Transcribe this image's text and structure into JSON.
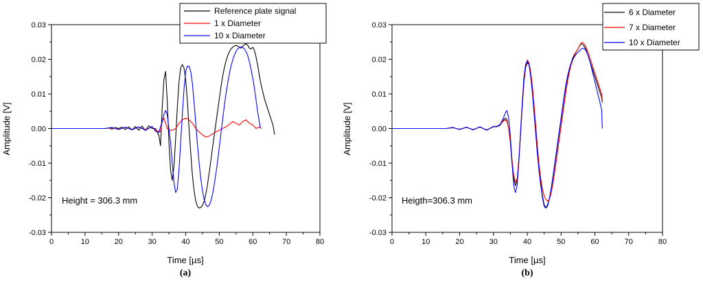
{
  "chart_data": [
    {
      "type": "line",
      "panel_label": "(a)",
      "xlabel": "Time [µs]",
      "ylabel": "Amplitude [V]",
      "xlim": [
        0,
        80
      ],
      "ylim": [
        -0.03,
        0.03
      ],
      "xticks": [
        0,
        10,
        20,
        30,
        40,
        50,
        60,
        70,
        80
      ],
      "xtick_labels": [
        "0",
        "10",
        "20",
        "30",
        "40",
        "50",
        "60",
        "70",
        "80"
      ],
      "yticks": [
        -0.03,
        -0.02,
        -0.01,
        0.0,
        0.01,
        0.02,
        0.03
      ],
      "ytick_labels": [
        "-0.03",
        "-0.02",
        "-0.01",
        "0.00",
        "0.01",
        "0.02",
        "0.03"
      ],
      "annotation": "Height = 306.3 mm",
      "legend_position": "top-right",
      "series": [
        {
          "name": "Reference plate signal",
          "color": "#000000",
          "x": [
            0,
            16,
            17,
            18,
            19,
            20,
            21,
            22,
            23,
            24,
            25,
            26,
            27,
            28,
            29,
            30,
            31,
            32,
            32.5,
            33,
            33.5,
            34,
            34.5,
            35,
            35.5,
            36,
            36.5,
            37,
            37.5,
            38,
            38.5,
            39,
            39.5,
            40,
            40.5,
            41,
            41.5,
            42,
            42.5,
            43,
            43.5,
            44,
            44.5,
            45,
            45.5,
            46,
            46.5,
            47,
            47.5,
            48,
            48.5,
            49,
            49.5,
            50,
            50.5,
            51,
            51.5,
            52,
            52.5,
            53,
            53.5,
            54,
            54.5,
            55,
            55.5,
            56,
            56.5,
            57,
            57.5,
            58,
            58.5,
            59,
            59.5,
            60,
            60.5,
            61,
            61.5,
            62,
            62.5,
            63,
            63.5,
            64,
            64.5,
            65,
            65.5,
            66,
            66.5
          ],
          "y": [
            0.0,
            0.0,
            0.0002,
            -0.0002,
            0.0003,
            0.0,
            0.0004,
            -0.0003,
            0.0005,
            -0.0004,
            0.0006,
            -0.0005,
            0.0007,
            -0.0006,
            0.0008,
            0.0,
            0.0,
            -0.002,
            -0.005,
            0.006,
            0.014,
            0.0165,
            0.008,
            -0.004,
            -0.012,
            -0.015,
            -0.011,
            -0.003,
            0.006,
            0.0135,
            0.0175,
            0.0185,
            0.0175,
            0.014,
            0.008,
            0.0,
            -0.007,
            -0.0135,
            -0.018,
            -0.021,
            -0.0225,
            -0.023,
            -0.0228,
            -0.0222,
            -0.021,
            -0.019,
            -0.0162,
            -0.0128,
            -0.0092,
            -0.0055,
            -0.002,
            0.0015,
            0.005,
            0.0085,
            0.012,
            0.015,
            0.0175,
            0.0195,
            0.021,
            0.0222,
            0.023,
            0.0235,
            0.0238,
            0.024,
            0.0238,
            0.0235,
            0.0232,
            0.0238,
            0.0242,
            0.0245,
            0.024,
            0.0232,
            0.023,
            0.0235,
            0.0225,
            0.0205,
            0.018,
            0.015,
            0.0125,
            0.0105,
            0.0085,
            0.007,
            0.0055,
            0.004,
            0.0025,
            0.001,
            -0.0018
          ]
        },
        {
          "name": "1 x Diameter",
          "color": "#ff0000",
          "x": [
            0,
            16,
            18,
            20,
            22,
            24,
            26,
            28,
            30,
            31,
            32,
            32.5,
            33,
            33.5,
            34,
            34.5,
            35,
            36,
            37,
            38,
            39,
            40,
            41,
            42,
            43,
            44,
            45,
            46,
            47,
            48,
            49,
            50,
            51,
            52,
            53,
            54,
            55,
            56,
            57,
            58,
            59,
            60,
            61,
            62,
            62.5
          ],
          "y": [
            0.0,
            0.0,
            0.0002,
            -0.0002,
            0.0003,
            -0.0003,
            0.0004,
            -0.0003,
            0.0005,
            -0.0005,
            -0.0008,
            -0.001,
            0.002,
            0.003,
            0.0015,
            0.0,
            -0.0005,
            -0.0005,
            0.0,
            0.0015,
            0.0025,
            0.003,
            0.0025,
            0.0015,
            0.0,
            -0.001,
            -0.0018,
            -0.0025,
            -0.0022,
            -0.0015,
            -0.001,
            -0.0005,
            0.0,
            0.0005,
            0.0012,
            0.002,
            0.0015,
            0.001,
            0.002,
            0.0025,
            0.0015,
            0.001,
            0.0,
            0.0005,
            0.0
          ]
        },
        {
          "name": "10 x Diameter",
          "color": "#0000ff",
          "x": [
            0,
            16,
            18,
            20,
            22,
            24,
            26,
            28,
            30,
            31,
            32,
            32.5,
            33,
            33.5,
            34,
            34.5,
            35,
            35.5,
            36,
            36.5,
            37,
            37.5,
            38,
            38.5,
            39,
            39.5,
            40,
            40.5,
            41,
            41.5,
            42,
            42.5,
            43,
            43.5,
            44,
            44.5,
            45,
            45.5,
            46,
            46.5,
            47,
            47.5,
            48,
            48.5,
            49,
            49.5,
            50,
            50.5,
            51,
            51.5,
            52,
            52.5,
            53,
            53.5,
            54,
            54.5,
            55,
            55.5,
            56,
            56.5,
            57,
            57.5,
            58,
            58.5,
            59,
            59.5,
            60,
            60.5,
            61,
            61.5,
            62,
            62.3
          ],
          "y": [
            0.0,
            0.0,
            0.0003,
            -0.0003,
            0.0004,
            -0.0004,
            0.0005,
            -0.0005,
            0.0006,
            -0.0008,
            -0.0012,
            0.0005,
            0.002,
            0.004,
            0.0052,
            0.004,
            0.0,
            -0.004,
            -0.01,
            -0.0155,
            -0.0185,
            -0.0175,
            -0.012,
            -0.004,
            0.004,
            0.0115,
            0.0165,
            0.018,
            0.018,
            0.0165,
            0.013,
            0.0075,
            0.0015,
            -0.0045,
            -0.01,
            -0.0145,
            -0.018,
            -0.0205,
            -0.022,
            -0.0226,
            -0.0222,
            -0.021,
            -0.019,
            -0.0162,
            -0.013,
            -0.0095,
            -0.0055,
            -0.0015,
            0.0025,
            0.0065,
            0.01,
            0.013,
            0.0158,
            0.018,
            0.0198,
            0.0212,
            0.0223,
            0.023,
            0.0234,
            0.0236,
            0.0234,
            0.023,
            0.0222,
            0.021,
            0.0192,
            0.017,
            0.0145,
            0.0115,
            0.008,
            0.0045,
            0.0015,
            0.0
          ]
        }
      ]
    },
    {
      "type": "line",
      "panel_label": "(b)",
      "xlabel": "Time [µs]",
      "ylabel": "Amplitude [V]",
      "xlim": [
        0,
        80
      ],
      "ylim": [
        -0.03,
        0.03
      ],
      "xticks": [
        0,
        10,
        20,
        30,
        40,
        50,
        60,
        70,
        80
      ],
      "xtick_labels": [
        "0",
        "10",
        "20",
        "30",
        "40",
        "50",
        "60",
        "70",
        "80"
      ],
      "yticks": [
        -0.03,
        -0.02,
        -0.01,
        0.0,
        0.01,
        0.02,
        0.03
      ],
      "ytick_labels": [
        "-0.03",
        "-0.02",
        "-0.01",
        "0.00",
        "0.01",
        "0.02",
        "0.03"
      ],
      "annotation": "Heigth=306.3 mm",
      "legend_position": "top-right",
      "series": [
        {
          "name": "6 x Diameter",
          "color": "#000000",
          "x": [
            0,
            16,
            18,
            20,
            22,
            24,
            26,
            28,
            30,
            31,
            32,
            33,
            33.5,
            34,
            34.5,
            35,
            35.5,
            36,
            36.5,
            37,
            37.5,
            38,
            38.5,
            39,
            39.5,
            40,
            40.5,
            41,
            41.5,
            42,
            42.5,
            43,
            43.5,
            44,
            44.5,
            45,
            45.5,
            46,
            46.5,
            47,
            47.5,
            48,
            48.5,
            49,
            49.5,
            50,
            50.5,
            51,
            51.5,
            52,
            52.5,
            53,
            53.5,
            54,
            54.5,
            55,
            55.5,
            56,
            56.5,
            57,
            57.5,
            58,
            58.5,
            59,
            59.5,
            60,
            60.5,
            61,
            61.5,
            62,
            62.2
          ],
          "y": [
            0.0,
            0.0,
            0.0002,
            -0.0002,
            0.0003,
            -0.0003,
            0.0004,
            -0.0004,
            0.0005,
            0.0005,
            0.001,
            0.0025,
            0.003,
            0.0025,
            0.0,
            -0.004,
            -0.01,
            -0.0145,
            -0.0165,
            -0.015,
            -0.0095,
            -0.002,
            0.006,
            0.013,
            0.0175,
            0.019,
            0.0185,
            0.016,
            0.012,
            0.0065,
            0.0005,
            -0.0055,
            -0.011,
            -0.0155,
            -0.0195,
            -0.022,
            -0.023,
            -0.022,
            -0.0205,
            -0.018,
            -0.015,
            -0.0115,
            -0.008,
            -0.0045,
            -0.001,
            0.0025,
            0.006,
            0.0095,
            0.0125,
            0.015,
            0.0172,
            0.019,
            0.0205,
            0.0215,
            0.0222,
            0.023,
            0.024,
            0.0245,
            0.0242,
            0.0235,
            0.0225,
            0.021,
            0.0195,
            0.018,
            0.0165,
            0.015,
            0.0135,
            0.012,
            0.0105,
            0.009,
            0.0075
          ]
        },
        {
          "name": "7 x Diameter",
          "color": "#ff0000",
          "x": [
            0,
            16,
            18,
            20,
            22,
            24,
            26,
            28,
            30,
            31,
            32,
            33,
            33.5,
            34,
            34.5,
            35,
            35.5,
            36,
            36.5,
            37,
            37.5,
            38,
            38.5,
            39,
            39.5,
            40,
            40.5,
            41,
            41.5,
            42,
            42.5,
            43,
            43.5,
            44,
            44.5,
            45,
            45.5,
            46,
            46.5,
            47,
            47.5,
            48,
            48.5,
            49,
            49.5,
            50,
            50.5,
            51,
            51.5,
            52,
            52.5,
            53,
            53.5,
            54,
            54.5,
            55,
            55.5,
            56,
            56.5,
            57,
            57.5,
            58,
            58.5,
            59,
            59.5,
            60,
            60.5,
            61,
            61.5,
            62,
            62.2
          ],
          "y": [
            0.0,
            0.0,
            0.0003,
            -0.0003,
            0.0004,
            -0.0004,
            0.0005,
            -0.0005,
            0.0006,
            0.0006,
            0.0012,
            0.0022,
            0.0025,
            0.002,
            0.0,
            -0.0035,
            -0.009,
            -0.0135,
            -0.0155,
            -0.0145,
            -0.009,
            -0.0015,
            0.0065,
            0.0135,
            0.018,
            0.0198,
            0.019,
            0.0165,
            0.0125,
            0.007,
            0.001,
            -0.005,
            -0.0105,
            -0.0145,
            -0.0175,
            -0.0195,
            -0.0205,
            -0.021,
            -0.0205,
            -0.019,
            -0.0165,
            -0.0135,
            -0.01,
            -0.0065,
            -0.003,
            0.0005,
            0.004,
            0.0075,
            0.011,
            0.014,
            0.0165,
            0.0185,
            0.02,
            0.0212,
            0.0222,
            0.023,
            0.024,
            0.0248,
            0.0248,
            0.0242,
            0.0232,
            0.022,
            0.0205,
            0.019,
            0.0175,
            0.016,
            0.0145,
            0.013,
            0.0115,
            0.01,
            0.0082
          ]
        },
        {
          "name": "10 x Diameter",
          "color": "#0000ff",
          "x": [
            0,
            16,
            18,
            20,
            22,
            24,
            26,
            28,
            30,
            31,
            32,
            33,
            33.5,
            34,
            34.5,
            35,
            35.5,
            36,
            36.5,
            37,
            37.5,
            38,
            38.5,
            39,
            39.5,
            40,
            40.5,
            41,
            41.5,
            42,
            42.5,
            43,
            43.5,
            44,
            44.5,
            45,
            45.5,
            46,
            46.5,
            47,
            47.5,
            48,
            48.5,
            49,
            49.5,
            50,
            50.5,
            51,
            51.5,
            52,
            52.5,
            53,
            53.5,
            54,
            54.5,
            55,
            55.5,
            56,
            56.5,
            57,
            57.5,
            58,
            58.5,
            59,
            59.5,
            60,
            60.5,
            61,
            61.5,
            62,
            62.2
          ],
          "y": [
            0.0,
            0.0,
            0.0003,
            -0.0003,
            0.0004,
            -0.0004,
            0.0005,
            -0.0005,
            0.0006,
            0.0006,
            0.0012,
            0.0032,
            0.0045,
            0.0052,
            0.003,
            -0.002,
            -0.01,
            -0.0165,
            -0.0185,
            -0.0165,
            -0.01,
            -0.0015,
            0.007,
            0.0145,
            0.0185,
            0.0195,
            0.0185,
            0.015,
            0.0105,
            0.0045,
            -0.0015,
            -0.0075,
            -0.0125,
            -0.0165,
            -0.02,
            -0.0225,
            -0.023,
            -0.0225,
            -0.0205,
            -0.0178,
            -0.0145,
            -0.011,
            -0.0075,
            -0.004,
            -0.0005,
            0.003,
            0.0065,
            0.01,
            0.013,
            0.0155,
            0.0175,
            0.019,
            0.02,
            0.0208,
            0.0215,
            0.022,
            0.0225,
            0.023,
            0.0232,
            0.023,
            0.0222,
            0.021,
            0.0195,
            0.0175,
            0.0155,
            0.0135,
            0.0115,
            0.0095,
            0.0075,
            0.0055,
            0.0
          ]
        }
      ]
    }
  ]
}
